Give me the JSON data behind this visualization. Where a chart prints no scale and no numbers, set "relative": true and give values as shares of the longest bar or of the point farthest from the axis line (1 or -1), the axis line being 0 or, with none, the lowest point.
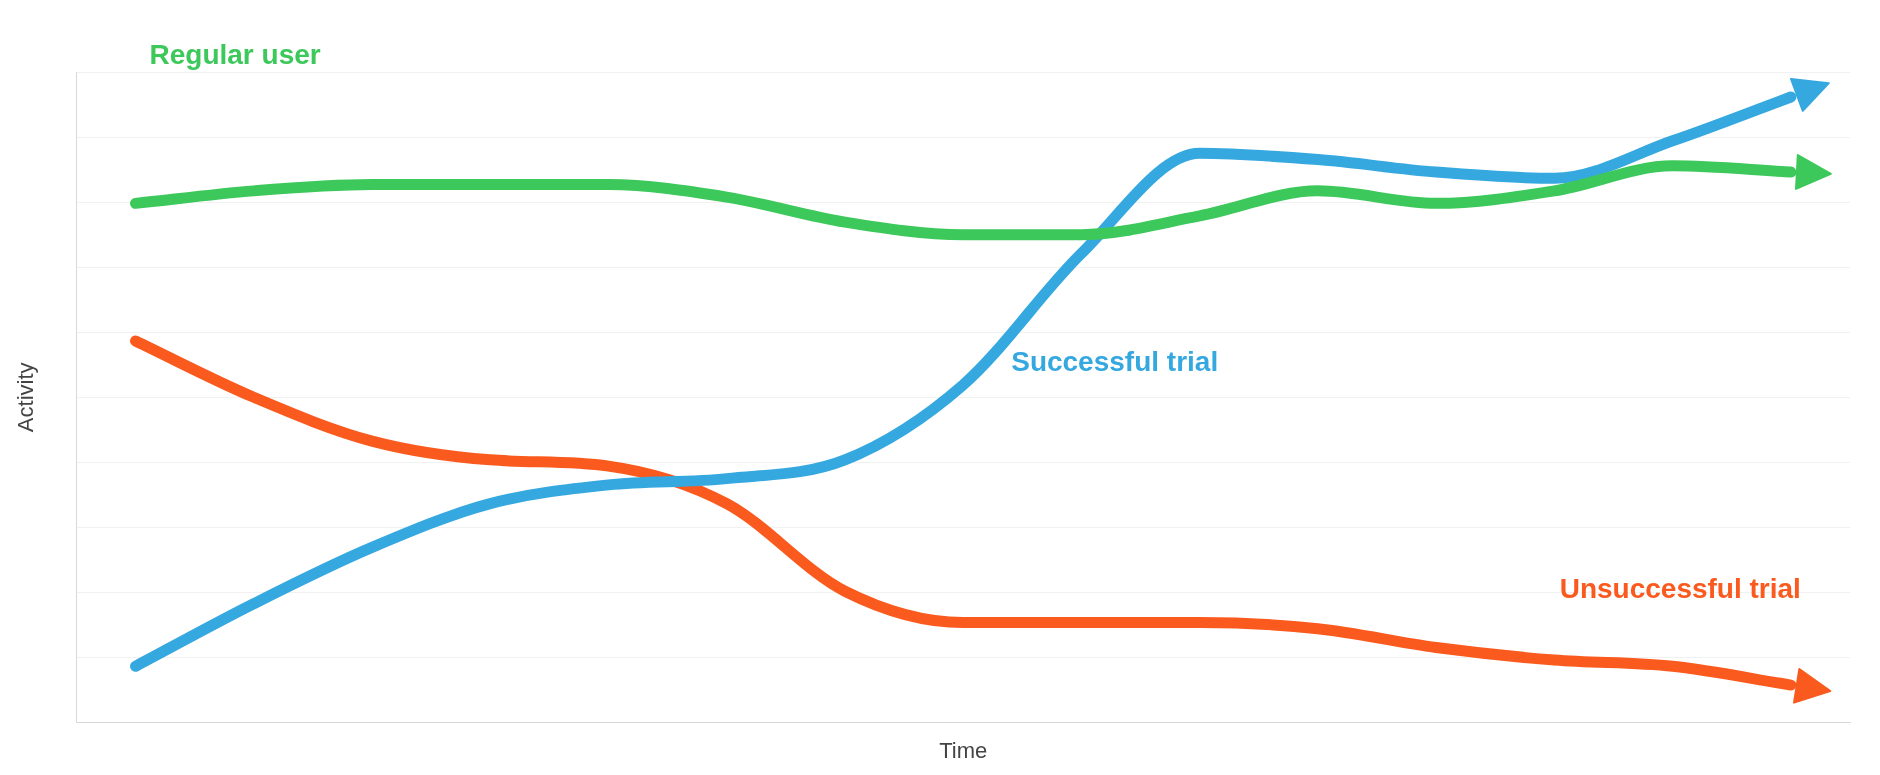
{
  "chart_data": {
    "type": "line",
    "relative": true,
    "xlabel": "Time",
    "ylabel": "Activity",
    "grid": "y",
    "legend": false,
    "marker": "none",
    "line_style": "solid",
    "categories": [
      null,
      null,
      null,
      null,
      null,
      null,
      null,
      null,
      null,
      null,
      null,
      null,
      null,
      null,
      null
    ],
    "series": [
      {
        "name": "Regular user",
        "color": "#3cc85a",
        "values": [
          0.83,
          0.85,
          0.86,
          0.86,
          0.86,
          0.84,
          0.8,
          0.78,
          0.78,
          0.81,
          0.85,
          0.83,
          0.85,
          0.89,
          0.88
        ]
      },
      {
        "name": "Successful trial",
        "color": "#35a8e0",
        "values": [
          0.09,
          0.19,
          0.28,
          0.35,
          0.38,
          0.39,
          0.42,
          0.54,
          0.75,
          0.91,
          0.9,
          0.88,
          0.87,
          0.93,
          1
        ]
      },
      {
        "name": "Unsuccessful trial",
        "color": "#fa5a1e",
        "values": [
          0.61,
          0.52,
          0.45,
          0.42,
          0.41,
          0.35,
          0.21,
          0.16,
          0.16,
          0.16,
          0.15,
          0.12,
          0.1,
          0.09,
          0.06
        ]
      }
    ]
  }
}
